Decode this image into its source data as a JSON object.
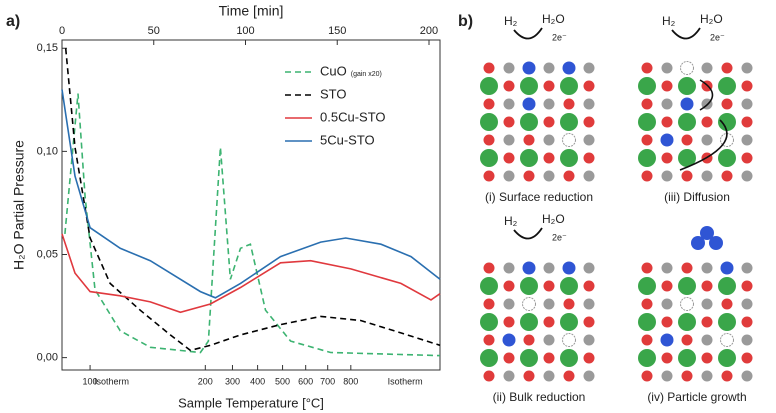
{
  "chart_data": {
    "type": "line",
    "panel_label": "a)",
    "title": "Time [min]",
    "y_label": "H₂O Partial Pressure",
    "x_label": "Sample Temperature [°C]",
    "xlim": [
      0,
      206
    ],
    "xticks": [
      0,
      50,
      100,
      150,
      200
    ],
    "ylim": [
      -0.006,
      0.154
    ],
    "yticks": [
      {
        "value": 0,
        "label": "0,00"
      },
      {
        "value": 0.05,
        "label": "0,05"
      },
      {
        "value": 0.1,
        "label": "0,10"
      },
      {
        "value": 0.15,
        "label": "0,15"
      }
    ],
    "bottom_ticks": [
      {
        "value": 15.3,
        "label": "100"
      },
      {
        "value": 78.1,
        "label": "200"
      },
      {
        "value": 92.9,
        "label": "300"
      },
      {
        "value": 106.6,
        "label": "400"
      },
      {
        "value": 120.2,
        "label": "500"
      },
      {
        "value": 132.8,
        "label": "600"
      },
      {
        "value": 144.8,
        "label": "700"
      },
      {
        "value": 157.4,
        "label": "800"
      }
    ],
    "annotations": [
      {
        "text": "Isotherm",
        "x": 27
      },
      {
        "text": "Isotherm",
        "x": 187
      }
    ],
    "series": [
      {
        "name": "CuO",
        "name_note": "(gain x20)",
        "color": "#3cb371",
        "dash": true,
        "x": [
          1.6,
          8.7,
          12.6,
          18,
          31.7,
          48.1,
          75.4,
          79.8,
          86.3,
          91.8,
          97.3,
          102.7,
          110.9,
          124.6,
          146.4,
          206
        ],
        "values": [
          0.06,
          0.128,
          0.078,
          0.033,
          0.013,
          0.005,
          0.0025,
          0.008,
          0.102,
          0.038,
          0.053,
          0.055,
          0.023,
          0.008,
          0.0025,
          0.001
        ]
      },
      {
        "name": "STO",
        "color": "#000000",
        "dash": true,
        "x": [
          2,
          7.1,
          15.3,
          26.2,
          42.6,
          59,
          70,
          80.9,
          97.3,
          119.1,
          141,
          162.8,
          184.7,
          206
        ],
        "values": [
          0.15,
          0.102,
          0.058,
          0.036,
          0.023,
          0.011,
          0.0035,
          0.006,
          0.011,
          0.016,
          0.02,
          0.018,
          0.012,
          0.006
        ]
      },
      {
        "name": "0.5Cu-STO",
        "color": "#e0393e",
        "dash": false,
        "x": [
          0,
          7.1,
          15.3,
          31.7,
          48.1,
          64.5,
          80.9,
          97.3,
          119.1,
          135.5,
          157.4,
          184.7,
          201.1,
          206
        ],
        "values": [
          0.06,
          0.041,
          0.032,
          0.03,
          0.027,
          0.022,
          0.026,
          0.034,
          0.046,
          0.047,
          0.043,
          0.036,
          0.028,
          0.031
        ]
      },
      {
        "name": "5Cu-STO",
        "color": "#2a6fb0",
        "dash": false,
        "x": [
          0,
          7.1,
          15.3,
          31.7,
          48.1,
          75.4,
          83.6,
          97.3,
          119.1,
          141,
          154.6,
          173.8,
          190.2,
          206
        ],
        "values": [
          0.13,
          0.088,
          0.063,
          0.053,
          0.047,
          0.032,
          0.029,
          0.036,
          0.049,
          0.056,
          0.058,
          0.055,
          0.049,
          0.038
        ]
      }
    ]
  },
  "diagram": {
    "panel_label": "b)",
    "panels": [
      {
        "caption": "(i) Surface reduction",
        "h2": "H₂",
        "h2o": "H₂O",
        "electrons": "2e⁻"
      },
      {
        "caption": "(iii) Diffusion",
        "h2": "H₂",
        "h2o": "H₂O",
        "electrons": "2e⁻"
      },
      {
        "caption": "(ii) Bulk reduction",
        "h2": "H₂",
        "h2o": "H₂O",
        "electrons": "2e⁻"
      },
      {
        "caption": "(iv) Particle growth"
      }
    ]
  }
}
